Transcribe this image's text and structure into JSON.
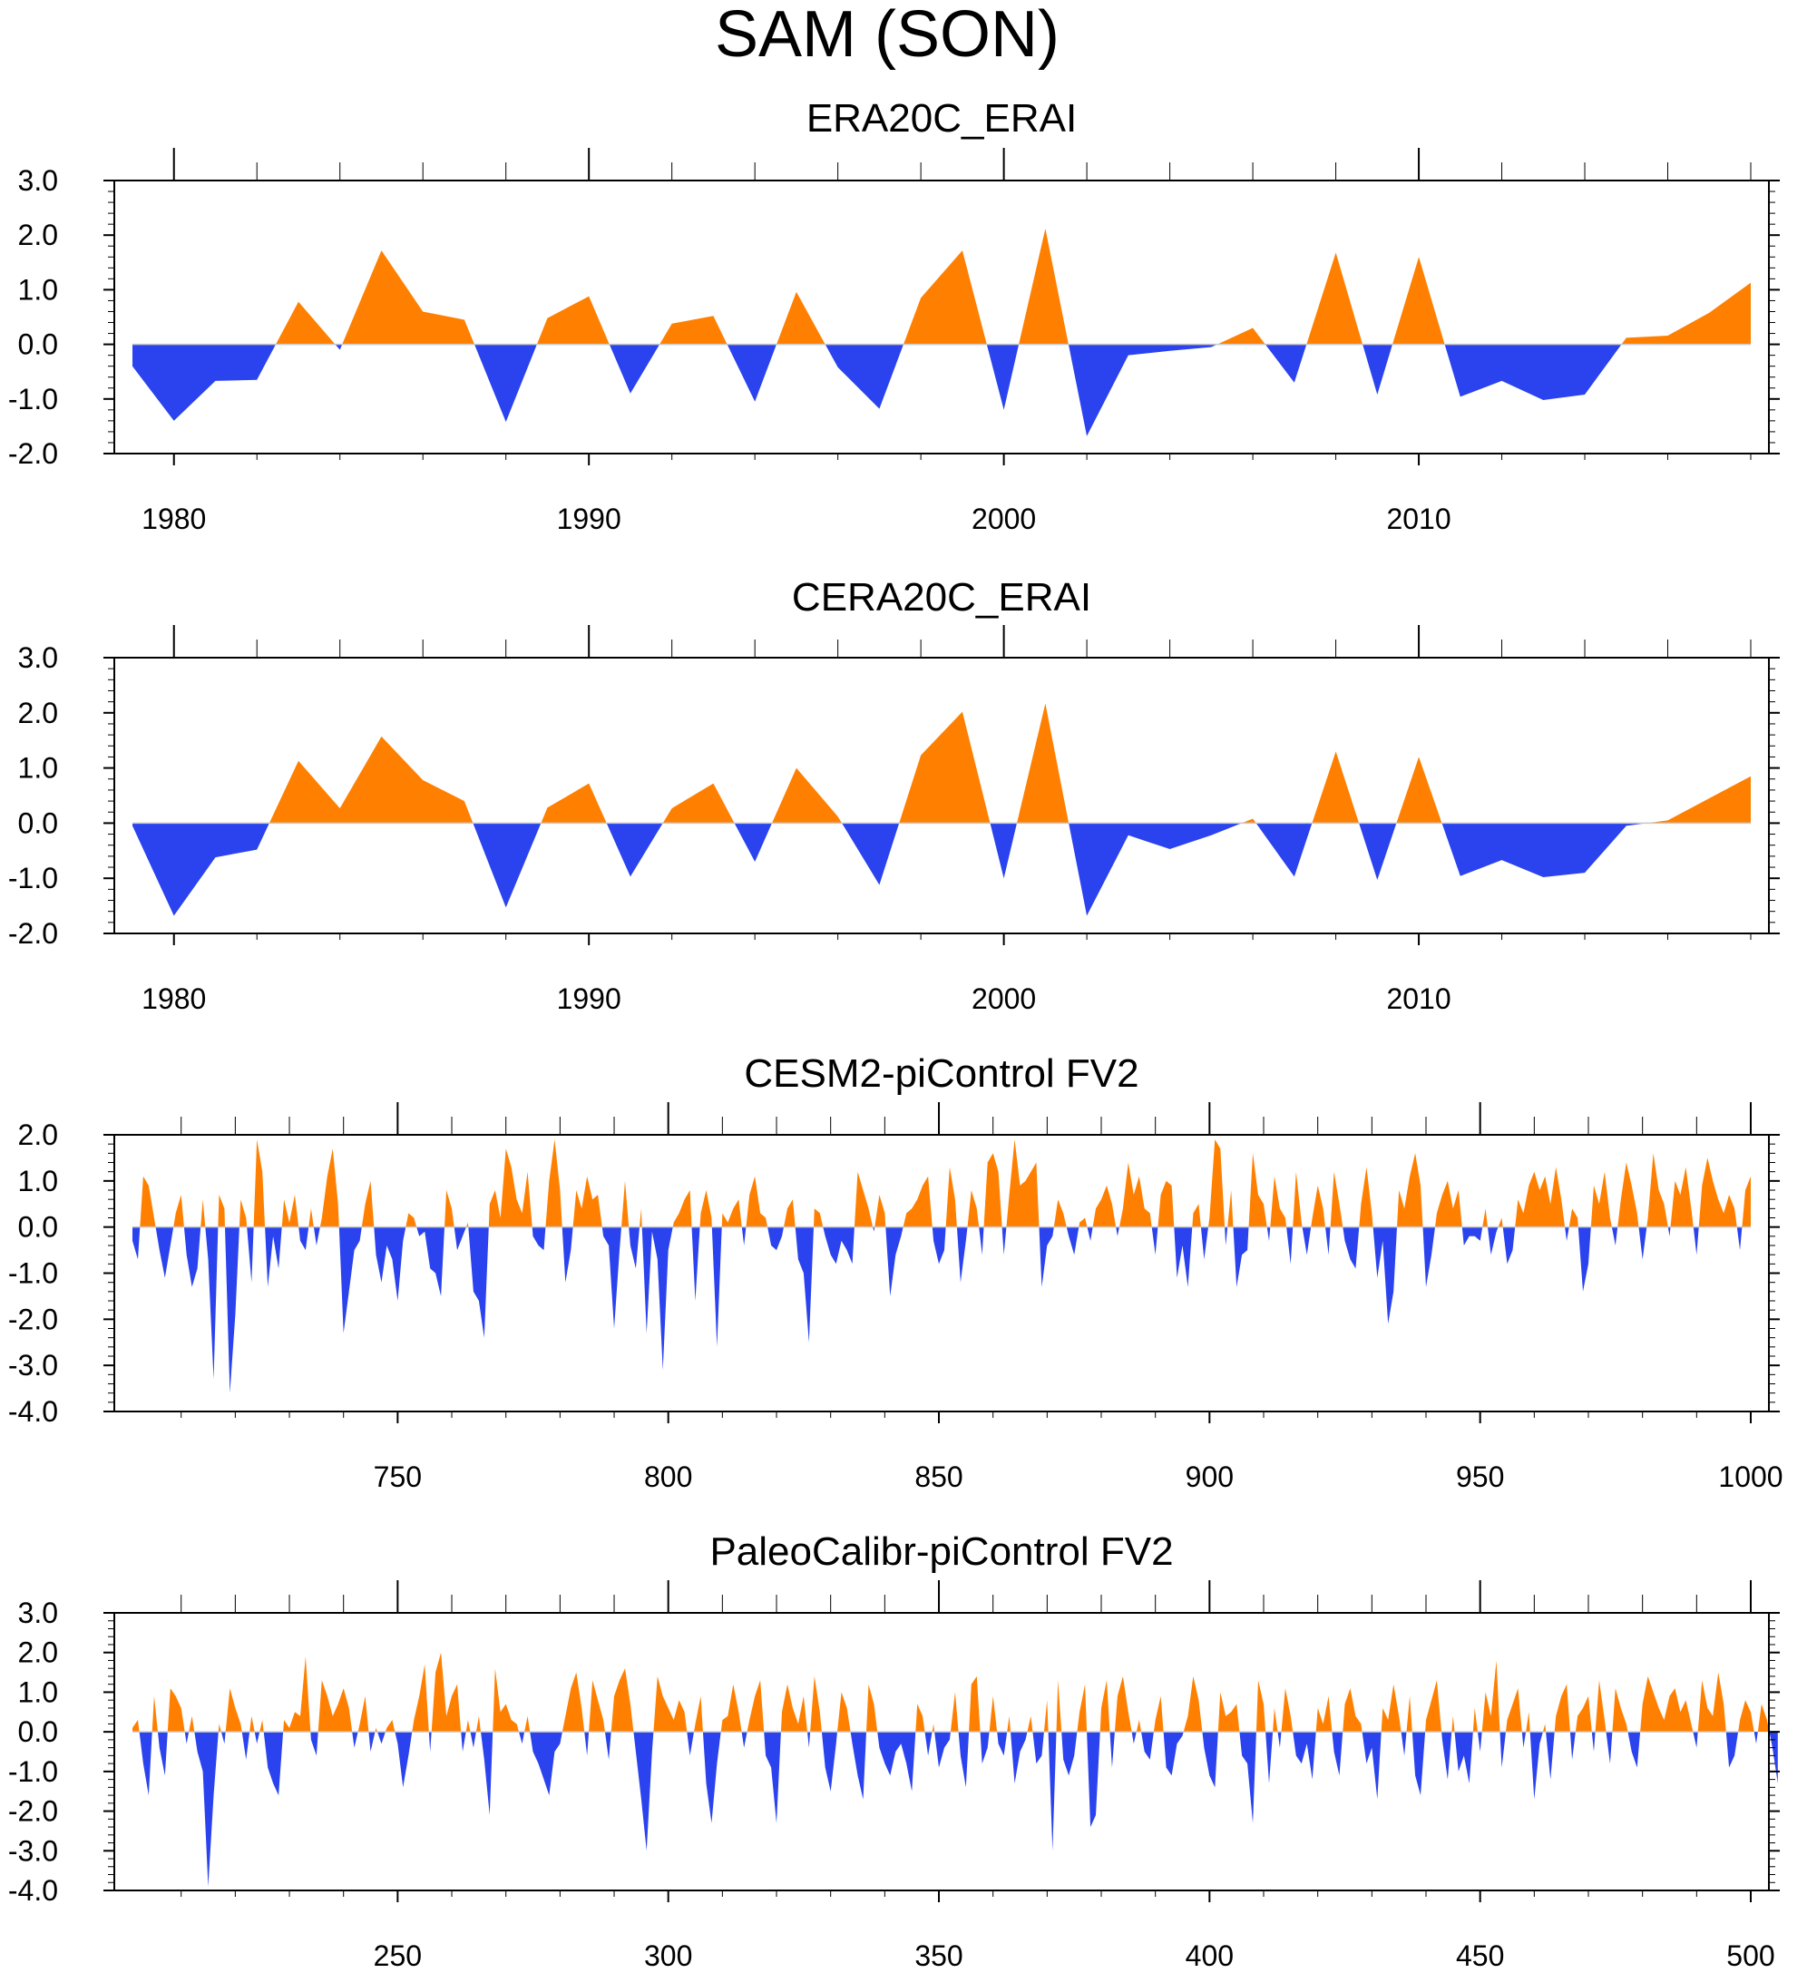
{
  "title": "SAM (SON)",
  "colors": {
    "positive": "#ff8000",
    "negative": "#2a43ee",
    "axis": "#000000",
    "zero_line": "#c8c8c8"
  },
  "chart_data": [
    {
      "type": "area",
      "title": "ERA20C_ERAI",
      "x_range": [
        1979,
        2018
      ],
      "ylim": [
        -2,
        3
      ],
      "yticks": [
        -2,
        -1,
        0,
        1,
        2,
        3
      ],
      "ytick_labels": [
        "-2.0",
        "-1.0",
        "0.0",
        "1.0",
        "2.0",
        "3.0"
      ],
      "xticks": [
        1980,
        1990,
        2000,
        2010
      ],
      "xtick_labels": [
        "1980",
        "1990",
        "2000",
        "2010"
      ],
      "x": [
        1979,
        1980,
        1981,
        1982,
        1983,
        1984,
        1985,
        1986,
        1987,
        1988,
        1989,
        1990,
        1991,
        1992,
        1993,
        1994,
        1995,
        1996,
        1997,
        1998,
        1999,
        2000,
        2001,
        2002,
        2003,
        2004,
        2005,
        2006,
        2007,
        2008,
        2009,
        2010,
        2011,
        2012,
        2013,
        2014,
        2015,
        2016,
        2017,
        2018
      ],
      "values": [
        -0.4,
        -1.4,
        -0.67,
        -0.65,
        0.78,
        -0.1,
        1.72,
        0.6,
        0.45,
        -1.42,
        0.48,
        0.88,
        -0.9,
        0.38,
        0.52,
        -1.05,
        0.96,
        -0.42,
        -1.18,
        0.85,
        1.72,
        -1.2,
        2.12,
        -1.68,
        -0.2,
        -0.12,
        -0.05,
        0.3,
        -0.7,
        1.68,
        -0.92,
        1.6,
        -0.96,
        -0.67,
        -1.02,
        -0.92,
        0.12,
        0.16,
        0.58,
        1.13
      ]
    },
    {
      "type": "area",
      "title": "CERA20C_ERAI",
      "x_range": [
        1979,
        2018
      ],
      "ylim": [
        -2,
        3
      ],
      "yticks": [
        -2,
        -1,
        0,
        1,
        2,
        3
      ],
      "ytick_labels": [
        "-2.0",
        "-1.0",
        "0.0",
        "1.0",
        "2.0",
        "3.0"
      ],
      "xticks": [
        1980,
        1990,
        2000,
        2010
      ],
      "xtick_labels": [
        "1980",
        "1990",
        "2000",
        "2010"
      ],
      "x": [
        1979,
        1980,
        1981,
        1982,
        1983,
        1984,
        1985,
        1986,
        1987,
        1988,
        1989,
        1990,
        1991,
        1992,
        1993,
        1994,
        1995,
        1996,
        1997,
        1998,
        1999,
        2000,
        2001,
        2002,
        2003,
        2004,
        2005,
        2006,
        2007,
        2008,
        2009,
        2010,
        2011,
        2012,
        2013,
        2014,
        2015,
        2016,
        2017,
        2018
      ],
      "values": [
        -0.05,
        -1.68,
        -0.62,
        -0.48,
        1.13,
        0.27,
        1.57,
        0.78,
        0.4,
        -1.53,
        0.28,
        0.72,
        -0.97,
        0.27,
        0.72,
        -0.7,
        1.0,
        0.12,
        -1.12,
        1.23,
        2.02,
        -1.0,
        2.17,
        -1.68,
        -0.22,
        -0.47,
        -0.22,
        0.08,
        -0.97,
        1.3,
        -1.03,
        1.2,
        -0.96,
        -0.67,
        -0.98,
        -0.9,
        -0.05,
        0.05,
        0.45,
        0.85
      ]
    },
    {
      "type": "area",
      "title": "CESM2-piControl FV2",
      "x_range": [
        701,
        1000
      ],
      "ylim": [
        -4,
        2
      ],
      "yticks": [
        -4,
        -3,
        -2,
        -1,
        0,
        1,
        2
      ],
      "ytick_labels": [
        "-4.0",
        "-3.0",
        "-2.0",
        "-1.0",
        "0.0",
        "1.0",
        "2.0"
      ],
      "xticks": [
        750,
        800,
        850,
        900,
        950,
        1000
      ],
      "xtick_labels": [
        "750",
        "800",
        "850",
        "900",
        "950",
        "1000"
      ],
      "x_start": 701,
      "x_step": 1,
      "values": [
        -0.3,
        -0.7,
        1.1,
        0.9,
        0.2,
        -0.5,
        -1.1,
        -0.4,
        0.3,
        0.7,
        -0.6,
        -1.3,
        -0.9,
        0.6,
        -0.7,
        -3.3,
        0.7,
        0.4,
        -3.6,
        -1.9,
        0.6,
        0.2,
        -1.2,
        1.9,
        1.2,
        -1.3,
        -0.2,
        -0.9,
        0.6,
        0.1,
        0.7,
        -0.3,
        -0.5,
        0.4,
        -0.4,
        0.2,
        1.1,
        1.7,
        0.5,
        -2.3,
        -1.4,
        -0.5,
        -0.3,
        0.5,
        1.0,
        -0.6,
        -1.2,
        -0.4,
        -0.7,
        -1.6,
        -0.3,
        0.3,
        0.2,
        -0.2,
        -0.1,
        -0.9,
        -1.0,
        -1.5,
        0.8,
        0.4,
        -0.5,
        -0.2,
        0.1,
        -1.4,
        -1.6,
        -2.4,
        0.5,
        0.8,
        0.2,
        1.7,
        1.3,
        0.6,
        0.3,
        1.2,
        -0.2,
        -0.4,
        -0.5,
        1.0,
        1.9,
        0.8,
        -1.2,
        -0.5,
        0.8,
        0.4,
        1.1,
        0.6,
        0.7,
        -0.2,
        -0.4,
        -2.2,
        -0.5,
        1.0,
        -0.4,
        -0.9,
        0.4,
        -2.3,
        -0.1,
        -0.7,
        -3.1,
        -0.5,
        0.1,
        0.3,
        0.6,
        0.8,
        -1.6,
        0.3,
        0.8,
        0.2,
        -2.6,
        0.3,
        0.1,
        0.4,
        0.6,
        -0.4,
        0.7,
        1.1,
        0.3,
        0.2,
        -0.4,
        -0.5,
        -0.2,
        0.4,
        0.6,
        -0.7,
        -1.0,
        -2.5,
        0.4,
        0.3,
        -0.2,
        -0.6,
        -0.8,
        -0.3,
        -0.5,
        -0.8,
        1.2,
        0.8,
        0.4,
        -0.1,
        0.7,
        0.3,
        -1.5,
        -0.6,
        -0.2,
        0.3,
        0.4,
        0.6,
        0.9,
        1.1,
        -0.3,
        -0.8,
        -0.5,
        1.3,
        0.6,
        -1.2,
        -0.3,
        0.8,
        0.4,
        -0.6,
        1.4,
        1.6,
        1.2,
        -0.6,
        0.7,
        1.9,
        0.9,
        1.0,
        1.2,
        1.4,
        -1.3,
        -0.4,
        -0.2,
        0.6,
        0.3,
        -0.2,
        -0.6,
        0.1,
        0.2,
        -0.3,
        0.4,
        0.6,
        0.9,
        0.5,
        -0.2,
        0.4,
        1.4,
        0.7,
        1.1,
        0.4,
        0.3,
        -0.6,
        0.7,
        1.0,
        0.9,
        -1.1,
        -0.4,
        -1.3,
        0.3,
        0.5,
        -0.7,
        0.2,
        1.9,
        1.7,
        -0.4,
        0.8,
        -1.3,
        -0.6,
        -0.5,
        1.6,
        0.7,
        0.5,
        -0.3,
        1.1,
        0.4,
        0.2,
        -0.8,
        1.2,
        0.1,
        -0.6,
        0.2,
        0.9,
        0.4,
        -0.6,
        1.2,
        0.5,
        -0.3,
        -0.7,
        -0.9,
        0.5,
        1.3,
        0.3,
        -1.1,
        -0.3,
        -2.1,
        -1.4,
        0.8,
        0.4,
        1.1,
        1.6,
        0.9,
        -1.3,
        -0.6,
        0.3,
        0.7,
        1.0,
        0.4,
        0.8,
        -0.4,
        -0.2,
        -0.2,
        -0.3,
        0.4,
        -0.6,
        -0.1,
        0.2,
        -0.8,
        -0.5,
        0.6,
        0.3,
        0.9,
        1.2,
        0.8,
        1.1,
        0.5,
        1.3,
        0.6,
        -0.3,
        0.4,
        0.2,
        -1.4,
        -0.8,
        0.9,
        0.5,
        1.2,
        0.2,
        -0.4,
        0.6,
        1.4,
        0.9,
        0.3,
        -0.7,
        0.2,
        1.6,
        0.8,
        0.5,
        -0.2,
        1.0,
        0.7,
        1.3,
        0.4,
        -0.6,
        0.9,
        1.5,
        1.0,
        0.6,
        0.3,
        0.7,
        0.4,
        -0.5,
        0.8,
        1.1
      ]
    },
    {
      "type": "area",
      "title": "PaleoCalibr-piControl FV2",
      "x_range": [
        201,
        500
      ],
      "ylim": [
        -4,
        3
      ],
      "yticks": [
        -4,
        -3,
        -2,
        -1,
        0,
        1,
        2,
        3
      ],
      "ytick_labels": [
        "-4.0",
        "-3.0",
        "-2.0",
        "-1.0",
        "0.0",
        "1.0",
        "2.0",
        "3.0"
      ],
      "xticks": [
        250,
        300,
        350,
        400,
        450,
        500
      ],
      "xtick_labels": [
        "250",
        "300",
        "350",
        "400",
        "450",
        "500"
      ],
      "x_start": 201,
      "x_step": 1,
      "values": [
        0.1,
        0.3,
        -0.8,
        -1.6,
        0.9,
        -0.4,
        -1.1,
        1.1,
        0.9,
        0.6,
        -0.3,
        0.4,
        -0.5,
        -1.0,
        -3.9,
        -1.6,
        0.2,
        -0.3,
        1.1,
        0.6,
        0.2,
        -0.7,
        0.4,
        -0.3,
        0.3,
        -0.9,
        -1.3,
        -1.6,
        0.3,
        0.1,
        0.5,
        0.4,
        1.9,
        -0.2,
        -0.6,
        1.3,
        0.9,
        0.4,
        0.7,
        1.1,
        0.6,
        -0.4,
        0.2,
        0.9,
        -0.5,
        0.1,
        -0.3,
        0.1,
        0.3,
        -0.3,
        -1.4,
        -0.6,
        0.3,
        0.9,
        1.7,
        -0.5,
        1.5,
        2.0,
        0.4,
        0.9,
        1.2,
        -0.5,
        0.3,
        -0.4,
        0.4,
        -0.7,
        -2.1,
        1.6,
        0.5,
        0.7,
        0.3,
        0.2,
        -0.3,
        0.4,
        -0.5,
        -0.8,
        -1.2,
        -1.6,
        -0.5,
        -0.3,
        0.4,
        1.1,
        1.5,
        0.6,
        -0.6,
        1.3,
        0.8,
        0.3,
        -0.7,
        0.9,
        1.3,
        1.6,
        0.7,
        -0.5,
        -1.7,
        -3.0,
        -0.5,
        1.4,
        0.9,
        0.6,
        0.3,
        0.8,
        0.5,
        -0.6,
        0.2,
        0.9,
        -1.3,
        -2.3,
        -0.8,
        0.3,
        0.4,
        1.2,
        0.5,
        -0.4,
        0.3,
        0.9,
        1.3,
        -0.6,
        -0.9,
        -2.3,
        0.5,
        1.2,
        0.6,
        0.2,
        0.9,
        -0.4,
        1.4,
        0.5,
        -0.9,
        -1.5,
        -0.3,
        1.0,
        0.6,
        -0.3,
        -1.1,
        -1.7,
        1.2,
        0.7,
        -0.4,
        -0.8,
        -1.1,
        -0.5,
        -0.3,
        -0.8,
        -1.5,
        0.7,
        0.4,
        -0.6,
        0.2,
        -0.9,
        -0.4,
        -0.2,
        1.0,
        -0.6,
        -1.4,
        1.2,
        1.4,
        -0.8,
        -0.4,
        0.9,
        -0.3,
        -0.6,
        0.4,
        -1.3,
        -0.5,
        -0.2,
        0.4,
        -0.8,
        -0.6,
        0.8,
        -3.0,
        1.3,
        -0.7,
        -1.1,
        -0.6,
        0.5,
        1.2,
        -2.4,
        -2.1,
        0.6,
        1.3,
        -0.9,
        0.9,
        1.4,
        0.5,
        -0.3,
        0.3,
        -0.5,
        -0.7,
        0.3,
        0.9,
        -0.9,
        -1.1,
        -0.3,
        -0.1,
        0.4,
        1.4,
        0.8,
        -0.4,
        -1.1,
        -1.4,
        1.0,
        0.4,
        0.5,
        0.7,
        -0.6,
        -0.8,
        -2.3,
        1.3,
        0.7,
        -1.3,
        0.6,
        -0.4,
        1.1,
        0.4,
        -0.6,
        -0.8,
        -0.3,
        -1.2,
        0.6,
        0.2,
        0.9,
        -0.5,
        -1.1,
        0.7,
        1.1,
        0.4,
        0.2,
        -0.8,
        -0.4,
        -1.7,
        0.6,
        0.3,
        1.2,
        0.4,
        -0.6,
        0.9,
        -1.1,
        -1.6,
        0.3,
        0.8,
        1.3,
        -0.2,
        -1.2,
        0.4,
        -1.0,
        -0.6,
        -1.3,
        0.6,
        -0.5,
        1.0,
        0.4,
        1.8,
        -0.9,
        0.3,
        0.7,
        1.1,
        -0.4,
        0.5,
        -1.7,
        -0.3,
        0.2,
        -1.2,
        0.4,
        0.9,
        1.2,
        -0.7,
        0.4,
        0.6,
        0.9,
        -0.5,
        1.3,
        0.3,
        -0.8,
        1.1,
        0.6,
        0.2,
        -0.5,
        -0.9,
        0.7,
        1.4,
        1.0,
        0.6,
        0.3,
        0.9,
        1.1,
        0.5,
        0.8,
        0.2,
        -0.4,
        1.3,
        0.6,
        0.4,
        1.5,
        0.7,
        -0.9,
        -0.6,
        0.3,
        0.8,
        0.5,
        -0.3,
        0.7,
        0.3,
        -0.4,
        -1.3
      ]
    }
  ]
}
